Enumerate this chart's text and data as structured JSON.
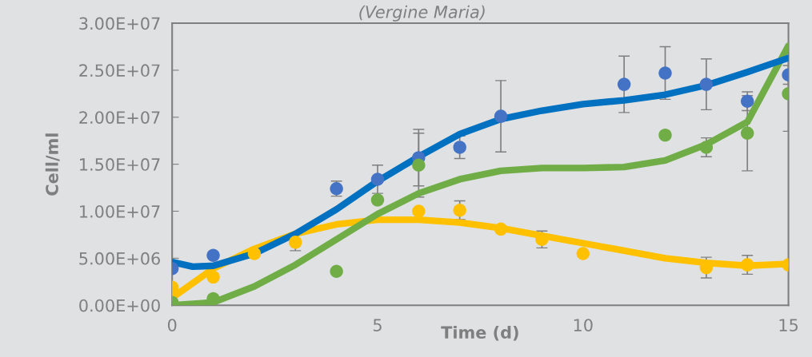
{
  "chart_data": {
    "type": "scatter",
    "title": "(Vergine Maria)",
    "xlabel": "Time (d)",
    "ylabel": "Cell/ml",
    "xlim": [
      0,
      15
    ],
    "xticks": [
      0,
      5,
      10,
      15
    ],
    "ylim": [
      0,
      30000000
    ],
    "yticks": [
      {
        "value": 0,
        "label": "0.00E+00"
      },
      {
        "value": 5000000,
        "label": "5.00E+06"
      },
      {
        "value": 10000000,
        "label": "1.00E+07"
      },
      {
        "value": 15000000,
        "label": "1.50E+07"
      },
      {
        "value": 20000000,
        "label": "2.00E+07"
      },
      {
        "value": 25000000,
        "label": "2.50E+07"
      },
      {
        "value": 30000000,
        "label": "3.00E+07"
      }
    ],
    "grid": false,
    "marker": "circle",
    "series": [
      {
        "type": "line",
        "marker": "none",
        "color": "#ffc000",
        "x": [
          0,
          1,
          2,
          3,
          4,
          5,
          6,
          7,
          8,
          9,
          10,
          11,
          12,
          13,
          14,
          15
        ],
        "values": [
          800000,
          3900000,
          6000000,
          7600000,
          8600000,
          9100000,
          9100000,
          8800000,
          8200000,
          7400000,
          6600000,
          5800000,
          5000000,
          4500000,
          4200000,
          4400000
        ]
      },
      {
        "type": "line",
        "marker": "none",
        "color": "#70ad47",
        "x": [
          0,
          1,
          2,
          3,
          4,
          5,
          6,
          7,
          8,
          9,
          10,
          11,
          12,
          13,
          14,
          15
        ],
        "values": [
          0,
          300000,
          2000000,
          4300000,
          7000000,
          9700000,
          11900000,
          13400000,
          14300000,
          14600000,
          14600000,
          14700000,
          15400000,
          17100000,
          19500000,
          27600000
        ]
      },
      {
        "type": "line",
        "marker": "none",
        "color": "#0070c0",
        "x": [
          0,
          0.5,
          1,
          2,
          3,
          4,
          5,
          6,
          7,
          8,
          9,
          10,
          11,
          12,
          13,
          14,
          15
        ],
        "values": [
          4600000,
          4100000,
          4200000,
          5500000,
          7600000,
          10200000,
          13200000,
          15800000,
          18200000,
          19800000,
          20700000,
          21400000,
          21800000,
          22400000,
          23400000,
          24800000,
          26300000
        ]
      },
      {
        "color": "#4472c4",
        "x": [
          0,
          1,
          4,
          5,
          6,
          7,
          8,
          11,
          12,
          13,
          14,
          15
        ],
        "values": [
          3900000,
          5300000,
          12400000,
          13400000,
          15700000,
          16800000,
          20100000,
          23500000,
          24700000,
          23500000,
          21700000,
          24500000
        ],
        "errors": [
          null,
          null,
          800000,
          1500000,
          3000000,
          1200000,
          3800000,
          3000000,
          2800000,
          2700000,
          1000000,
          1000000
        ]
      },
      {
        "color": "#70ad47",
        "x": [
          0,
          1,
          4,
          5,
          6,
          12,
          13,
          14,
          15
        ],
        "values": [
          300000,
          700000,
          3600000,
          11200000,
          14900000,
          18100000,
          16800000,
          18300000,
          22500000
        ],
        "errors": [
          null,
          null,
          null,
          null,
          3400000,
          null,
          1000000,
          4000000,
          4000000
        ]
      },
      {
        "color": "#ffc000",
        "x": [
          0,
          1,
          2,
          3,
          6,
          7,
          8,
          9,
          10,
          13,
          14,
          15
        ],
        "values": [
          1900000,
          3000000,
          5500000,
          6700000,
          10000000,
          10100000,
          8100000,
          7000000,
          5500000,
          4000000,
          4300000,
          4300000
        ],
        "errors": [
          null,
          null,
          null,
          900000,
          null,
          1000000,
          null,
          900000,
          null,
          1100000,
          1000000,
          null
        ]
      }
    ]
  }
}
